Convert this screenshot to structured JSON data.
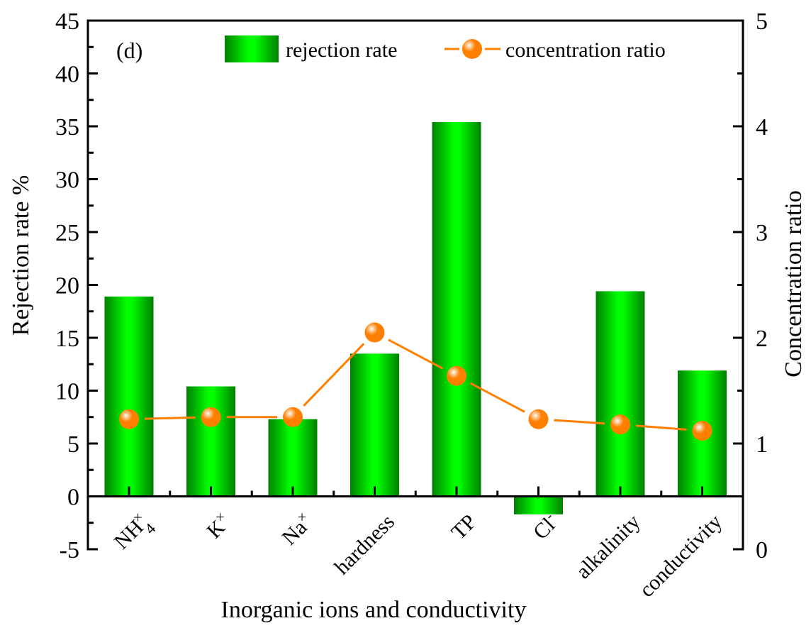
{
  "chart_data": {
    "type": "bar",
    "panel_label": "(d)",
    "xlabel": "Inorganic ions and conductivity",
    "ylabel": "Rejection rate %",
    "y2label": "Concentration ratio",
    "ylim": [
      -5,
      45
    ],
    "y2lim": [
      0,
      5
    ],
    "yticks": [
      -5,
      0,
      5,
      10,
      15,
      20,
      25,
      30,
      35,
      40,
      45
    ],
    "y2ticks": [
      0,
      1,
      2,
      3,
      4,
      5
    ],
    "categories": [
      {
        "base": "NH",
        "sub": "4",
        "sup": "×"
      },
      {
        "base": "K",
        "sub": "",
        "sup": "×"
      },
      {
        "base": "Na",
        "sub": "",
        "sup": "×"
      },
      {
        "base": "hardness",
        "sub": "",
        "sup": ""
      },
      {
        "base": "TP",
        "sub": "",
        "sup": ""
      },
      {
        "base": "Cl",
        "sub": "",
        "sup": "-"
      },
      {
        "base": "alkalinity",
        "sub": "",
        "sup": ""
      },
      {
        "base": "conductivity",
        "sub": "",
        "sup": ""
      }
    ],
    "series": [
      {
        "name": "rejection rate",
        "type": "bar",
        "axis": "left",
        "color": "#00ff00",
        "edge_color": "#008000",
        "values": [
          18.9,
          10.4,
          7.3,
          13.5,
          35.4,
          -1.7,
          19.4,
          11.9
        ]
      },
      {
        "name": "concentration ratio",
        "type": "line",
        "axis": "right",
        "color": "#ff8000",
        "values": [
          1.23,
          1.25,
          1.25,
          2.05,
          1.64,
          1.23,
          1.18,
          1.12
        ]
      }
    ],
    "legend": {
      "placement": "top",
      "entries": [
        "rejection rate",
        "concentration ratio"
      ]
    },
    "grid": false
  }
}
